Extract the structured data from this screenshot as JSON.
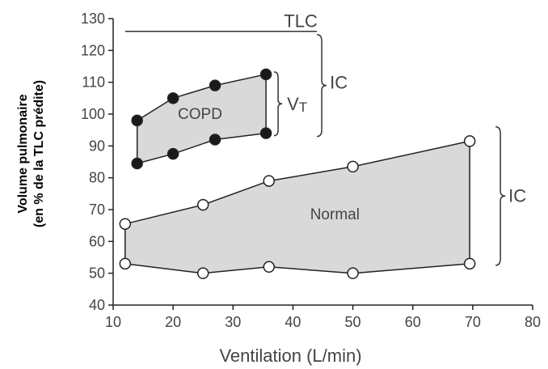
{
  "chart_data": {
    "type": "area",
    "xlabel": "Ventilation (L/min)",
    "ylabel_lines": [
      "Volume pulmonaire",
      "(en % de la TLC prédite)"
    ],
    "xlim": [
      10,
      80
    ],
    "ylim": [
      40,
      130
    ],
    "xticks": [
      10,
      20,
      30,
      40,
      50,
      60,
      70,
      80
    ],
    "yticks": [
      40,
      50,
      60,
      70,
      80,
      90,
      100,
      110,
      120,
      130
    ],
    "grid": false,
    "tlc": {
      "label": "TLC",
      "y": 126,
      "x_start": 12,
      "x_end": 44
    },
    "series": [
      {
        "name": "COPD",
        "marker": "filled",
        "fill": "#d9d9d9",
        "upper": [
          {
            "x": 14,
            "y": 98
          },
          {
            "x": 20,
            "y": 105
          },
          {
            "x": 27,
            "y": 109
          },
          {
            "x": 35.5,
            "y": 112.5
          }
        ],
        "lower": [
          {
            "x": 14,
            "y": 84.5
          },
          {
            "x": 20,
            "y": 87.5
          },
          {
            "x": 27,
            "y": 92
          },
          {
            "x": 35.5,
            "y": 94
          }
        ]
      },
      {
        "name": "Normal",
        "marker": "open",
        "fill": "#d9d9d9",
        "upper": [
          {
            "x": 12,
            "y": 65.5
          },
          {
            "x": 25,
            "y": 71.5
          },
          {
            "x": 36,
            "y": 79
          },
          {
            "x": 50,
            "y": 83.5
          },
          {
            "x": 69.5,
            "y": 91.5
          }
        ],
        "lower": [
          {
            "x": 12,
            "y": 53
          },
          {
            "x": 25,
            "y": 50
          },
          {
            "x": 36,
            "y": 52
          },
          {
            "x": 50,
            "y": 50
          },
          {
            "x": 69.5,
            "y": 53
          }
        ]
      }
    ],
    "annotations": {
      "vt_main": "V",
      "vt_sub": "T",
      "ic_copd": "IC",
      "ic_normal": "IC"
    }
  }
}
